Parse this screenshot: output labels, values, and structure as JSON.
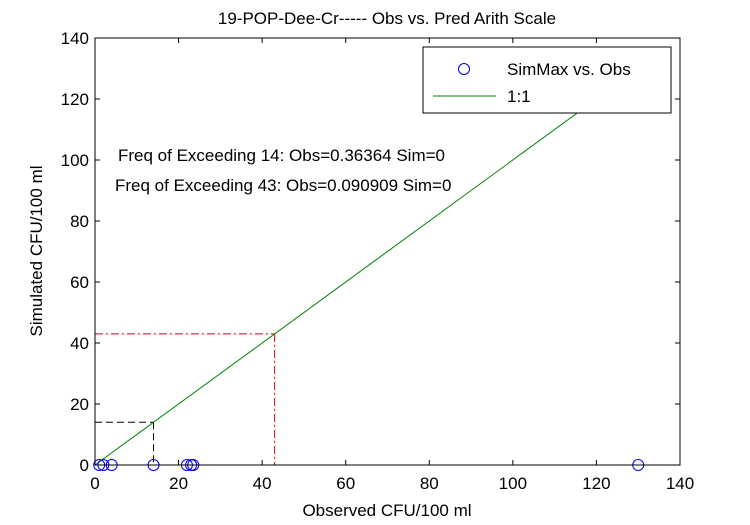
{
  "chart_data": {
    "type": "scatter",
    "title": "19-POP-Dee-Cr----- Obs vs. Pred Arith Scale",
    "xlabel": "Observed CFU/100 ml",
    "ylabel": "Simulated CFU/100 ml",
    "xlim": [
      0,
      140
    ],
    "ylim": [
      0,
      140
    ],
    "xticks": [
      "0",
      "20",
      "40",
      "60",
      "80",
      "100",
      "120",
      "140"
    ],
    "yticks": [
      "0",
      "20",
      "40",
      "60",
      "80",
      "100",
      "120",
      "140"
    ],
    "grid": false,
    "legend_position": "top-right",
    "series": [
      {
        "name": "SimMax vs. Obs",
        "marker": "circle",
        "color": "#0000ff",
        "points": [
          {
            "x": 1,
            "y": 0
          },
          {
            "x": 2,
            "y": 0
          },
          {
            "x": 4,
            "y": 0
          },
          {
            "x": 14,
            "y": 0
          },
          {
            "x": 22,
            "y": 0
          },
          {
            "x": 23,
            "y": 0
          },
          {
            "x": 23.5,
            "y": 0
          },
          {
            "x": 130,
            "y": 0
          }
        ]
      },
      {
        "name": "1:1",
        "line": "solid",
        "color": "#008000",
        "points": [
          {
            "x": 0,
            "y": 0
          },
          {
            "x": 130,
            "y": 130
          }
        ]
      }
    ],
    "thresholds": [
      {
        "value": 14,
        "color": "#000000",
        "style": "dashed"
      },
      {
        "value": 43,
        "color": "#cc0000",
        "style": "dash-dot"
      }
    ],
    "annotations": [
      "Freq of Exceeding 14: Obs=0.36364 Sim=0",
      "Freq of Exceeding 43: Obs=0.090909 Sim=0"
    ]
  }
}
